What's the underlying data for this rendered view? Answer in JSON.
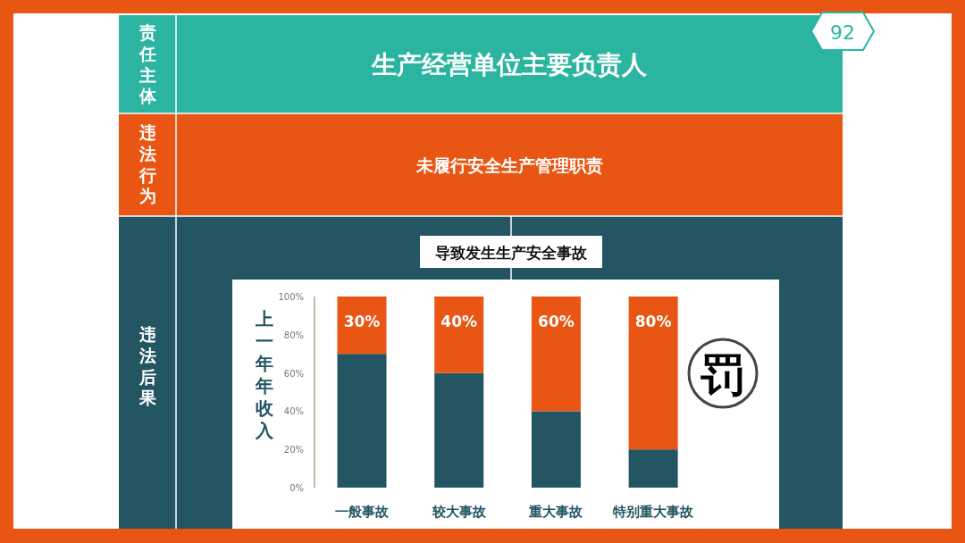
{
  "chart_data": {
    "type": "bar",
    "stacked": true,
    "ylabel": "上一年年收入",
    "categories": [
      "一般事故",
      "较大事故",
      "重大事故",
      "特别重大事故"
    ],
    "series": [
      {
        "color": "#235563",
        "values": [
          70,
          60,
          40,
          20
        ]
      },
      {
        "color": "#e95513",
        "values": [
          30,
          40,
          60,
          80
        ],
        "value_labels": [
          "30%",
          "40%",
          "60%",
          "80%"
        ]
      }
    ],
    "ylim": [
      0,
      100
    ],
    "yticks": [
      {
        "value": 0,
        "label": "0%"
      },
      {
        "value": 20,
        "label": "20%"
      },
      {
        "value": 40,
        "label": "40%"
      },
      {
        "value": 60,
        "label": "60%"
      },
      {
        "value": 80,
        "label": "80%"
      },
      {
        "value": 100,
        "label": "100%"
      }
    ],
    "annotations": [
      "责任主体",
      "生产经营单位主要负责人",
      "违法行为",
      "未履行安全生产管理职责",
      "违法后果",
      "导致发生生产安全事故",
      "罚",
      "92"
    ]
  }
}
